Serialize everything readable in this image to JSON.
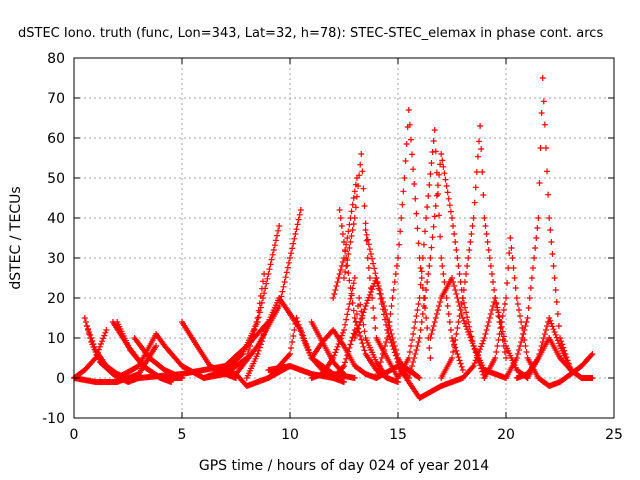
{
  "chart_data": {
    "type": "scatter",
    "title": "dSTEC Iono. truth (func, Lon=343, Lat=32, h=78): STEC-STEC_elemax in phase cont. arcs",
    "xlabel": "GPS time / hours of day 024 of year 2014",
    "ylabel": "dSTEC  / TECUs",
    "xlim": [
      0,
      25
    ],
    "ylim": [
      -10,
      80
    ],
    "xticks": [
      0,
      5,
      10,
      15,
      20,
      25
    ],
    "yticks": [
      -10,
      0,
      10,
      20,
      30,
      40,
      50,
      60,
      70,
      80
    ],
    "grid": true,
    "marker": "+",
    "color": "#ff0000",
    "series": [
      {
        "x": [
          0.0,
          0.5,
          1.0,
          1.5
        ],
        "y": [
          0,
          2,
          5,
          12
        ]
      },
      {
        "x": [
          0.5,
          0.8,
          1.2,
          1.8,
          2.5,
          3.0
        ],
        "y": [
          15,
          9,
          4,
          1,
          -1,
          0
        ]
      },
      {
        "x": [
          0.6,
          1.0,
          1.5,
          2.0,
          2.5
        ],
        "y": [
          13,
          7,
          3,
          1,
          0
        ]
      },
      {
        "x": [
          0.0,
          1.0,
          2.0,
          3.0,
          3.8
        ],
        "y": [
          0,
          -1,
          -1,
          1,
          8
        ]
      },
      {
        "x": [
          1.8,
          2.5,
          3.2,
          4.0,
          4.5
        ],
        "y": [
          14,
          8,
          3,
          0,
          -1
        ]
      },
      {
        "x": [
          2.0,
          2.6,
          3.2,
          4.0,
          5.0
        ],
        "y": [
          14,
          7,
          3,
          0,
          0
        ]
      },
      {
        "x": [
          2.8,
          3.5,
          4.2,
          5.0
        ],
        "y": [
          10,
          5,
          2,
          0
        ]
      },
      {
        "x": [
          2.0,
          3.0,
          3.5,
          3.8,
          4.2,
          5.0,
          6.0
        ],
        "y": [
          0,
          3,
          8,
          11,
          8,
          3,
          0
        ]
      },
      {
        "x": [
          5.0,
          5.7,
          6.3,
          7.0,
          7.5
        ],
        "y": [
          14,
          8,
          3,
          1,
          0
        ]
      },
      {
        "x": [
          3.0,
          5.0,
          7.0,
          8.0,
          9.0
        ],
        "y": [
          0,
          1,
          3,
          8,
          14
        ]
      },
      {
        "x": [
          6.0,
          7.0,
          7.8,
          8.5,
          9.0,
          9.5
        ],
        "y": [
          0,
          2,
          6,
          14,
          26,
          38
        ]
      },
      {
        "x": [
          6.0,
          7.0,
          8.0,
          8.5,
          8.8
        ],
        "y": [
          0,
          1,
          5,
          15,
          26
        ]
      },
      {
        "x": [
          6.5,
          7.5,
          8.0,
          9.0,
          10.0
        ],
        "y": [
          2,
          1,
          -2,
          0,
          3
        ]
      },
      {
        "x": [
          7.5,
          8.5,
          9.5,
          10.0,
          10.5
        ],
        "y": [
          1,
          8,
          18,
          30,
          42
        ]
      },
      {
        "x": [
          8.0,
          8.5,
          9.0,
          9.5,
          10.0,
          10.5,
          11.0,
          12.0,
          13.0
        ],
        "y": [
          0,
          6,
          14,
          20,
          16,
          12,
          5,
          1,
          0
        ]
      },
      {
        "x": [
          9.0,
          10.0,
          10.3,
          10.6,
          11.0,
          11.5,
          12.0,
          12.5
        ],
        "y": [
          0,
          6,
          15,
          10,
          5,
          2,
          0,
          -1
        ]
      },
      {
        "x": [
          9.0,
          10.0,
          11.0,
          12.0
        ],
        "y": [
          2,
          3,
          1,
          0
        ]
      },
      {
        "x": [
          11.0,
          11.5,
          12.0,
          12.5
        ],
        "y": [
          14,
          9,
          4,
          1
        ]
      },
      {
        "x": [
          11.0,
          11.5,
          12.0,
          12.5,
          13.0
        ],
        "y": [
          0,
          1,
          5,
          12,
          25
        ]
      },
      {
        "x": [
          11.0,
          11.5,
          12.0,
          12.5,
          13.0,
          13.5,
          14.0
        ],
        "y": [
          5,
          9,
          12,
          8,
          3,
          1,
          0
        ]
      },
      {
        "x": [
          12.0,
          12.5,
          13.0,
          13.2,
          13.5,
          14.0,
          14.5
        ],
        "y": [
          0,
          3,
          12,
          20,
          10,
          4,
          0
        ]
      },
      {
        "x": [
          12.0,
          12.5,
          12.8,
          13.1
        ],
        "y": [
          20,
          30,
          40,
          50
        ]
      },
      {
        "x": [
          12.3,
          12.6,
          13.0,
          13.5,
          14.0,
          14.5,
          15.0
        ],
        "y": [
          42,
          30,
          15,
          6,
          2,
          0,
          -1
        ]
      },
      {
        "x": [
          12.5,
          13.0,
          13.3,
          13.6,
          14.0,
          15.0
        ],
        "y": [
          25,
          40,
          56,
          30,
          10,
          0
        ]
      },
      {
        "x": [
          13.0,
          13.5,
          14.0,
          14.5,
          15.0,
          15.5
        ],
        "y": [
          10,
          18,
          25,
          15,
          5,
          0
        ]
      },
      {
        "x": [
          13.5,
          14.0,
          14.5,
          15.0,
          16.0
        ],
        "y": [
          37,
          25,
          12,
          4,
          0
        ]
      },
      {
        "x": [
          14.0,
          14.5,
          15.0,
          15.3,
          15.5,
          16.0,
          16.5
        ],
        "y": [
          0,
          10,
          30,
          50,
          67,
          30,
          5
        ]
      },
      {
        "x": [
          14.0,
          15.0,
          16.0,
          17.0,
          18.0
        ],
        "y": [
          0,
          3,
          -5,
          -2,
          0
        ]
      },
      {
        "x": [
          15.0,
          15.5,
          16.0,
          16.3,
          16.7,
          17.0,
          17.5,
          18.0
        ],
        "y": [
          0,
          5,
          20,
          40,
          62,
          30,
          10,
          2
        ]
      },
      {
        "x": [
          15.5,
          16.0,
          16.5,
          17.0,
          17.5,
          18.0,
          18.5,
          19.0
        ],
        "y": [
          0,
          10,
          30,
          56,
          40,
          20,
          8,
          0
        ]
      },
      {
        "x": [
          16.5,
          17.0,
          17.5,
          18.0,
          18.5,
          19.0,
          20.0
        ],
        "y": [
          10,
          20,
          25,
          15,
          8,
          2,
          0
        ]
      },
      {
        "x": [
          17.0,
          17.5,
          18.0,
          18.5,
          18.8,
          19.0,
          19.5,
          20.0
        ],
        "y": [
          0,
          5,
          20,
          40,
          63,
          40,
          20,
          5
        ]
      },
      {
        "x": [
          18.0,
          18.5,
          19.0,
          19.5,
          20.0,
          20.5,
          21.0
        ],
        "y": [
          0,
          3,
          10,
          20,
          8,
          2,
          0
        ]
      },
      {
        "x": [
          19.0,
          19.5,
          20.0,
          20.2,
          20.5,
          21.0,
          21.5
        ],
        "y": [
          0,
          5,
          20,
          35,
          20,
          5,
          0
        ]
      },
      {
        "x": [
          20.0,
          20.5,
          21.0,
          21.5,
          21.7,
          22.0,
          22.5,
          23.0
        ],
        "y": [
          0,
          5,
          15,
          40,
          75,
          40,
          10,
          2
        ]
      },
      {
        "x": [
          21.0,
          21.5,
          22.0,
          22.5,
          23.0,
          23.5,
          24.0
        ],
        "y": [
          0,
          5,
          15,
          8,
          2,
          0,
          0
        ]
      },
      {
        "x": [
          21.5,
          22.0,
          22.5,
          23.0,
          23.5,
          24.0
        ],
        "y": [
          0,
          -2,
          -1,
          1,
          3,
          6
        ]
      },
      {
        "x": [
          20.5,
          21.0,
          21.5,
          22.0,
          22.5,
          23.0,
          23.5,
          24.0
        ],
        "y": [
          0,
          1,
          5,
          10,
          5,
          2,
          0,
          0
        ]
      }
    ]
  }
}
